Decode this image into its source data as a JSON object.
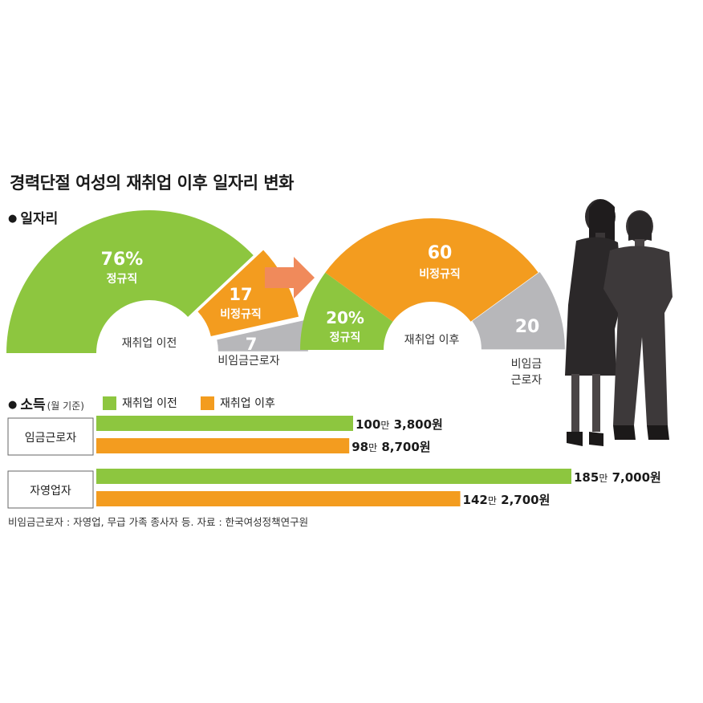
{
  "title": "경력단절 여성의 재취업 이후 일자리 변화",
  "jobs_section": {
    "bullet": "●",
    "label": "일자리"
  },
  "income_section": {
    "bullet": "●",
    "label": "소득",
    "sublabel": "(월 기준)"
  },
  "colors": {
    "before": "#8dc63f",
    "after": "#f39c1f",
    "nonwage": "#b7b7ba",
    "arrow": "#f08a5b"
  },
  "chart_data": [
    {
      "type": "pie",
      "name": "재취업 이전",
      "center_label": "재취업 이전",
      "slices": [
        {
          "key": "regular",
          "value": 76,
          "value_text": "76%",
          "label": "정규직",
          "color": "#8dc63f"
        },
        {
          "key": "nonregular",
          "value": 17,
          "value_text": "17",
          "label": "비정규직",
          "color": "#f39c1f"
        },
        {
          "key": "nonwage",
          "value": 7,
          "value_text": "7",
          "label": "비임금근로자",
          "color": "#b7b7ba"
        }
      ]
    },
    {
      "type": "pie",
      "name": "재취업 이후",
      "center_label": "재취업 이후",
      "slices": [
        {
          "key": "regular",
          "value": 20,
          "value_text": "20%",
          "label": "정규직",
          "color": "#8dc63f"
        },
        {
          "key": "nonregular",
          "value": 60,
          "value_text": "60",
          "label": "비정규직",
          "color": "#f39c1f"
        },
        {
          "key": "nonwage",
          "value": 20,
          "value_text": "20",
          "label": "비임금\n근로자",
          "color": "#b7b7ba"
        }
      ]
    },
    {
      "type": "bar",
      "legend": [
        "재취업 이전",
        "재취업 이후"
      ],
      "categories": [
        "임금근로자",
        "자영업자"
      ],
      "series": [
        {
          "name": "재취업 이전",
          "values": [
            1003800,
            1857000
          ],
          "labels": [
            "100만 3,800원",
            "185만 7,000원"
          ],
          "color": "#8dc63f"
        },
        {
          "name": "재취업 이후",
          "values": [
            988700,
            1422700
          ],
          "labels": [
            "98만 8,700원",
            "142만 2,700원"
          ],
          "color": "#f39c1f"
        }
      ]
    }
  ],
  "note": "비임금근로자 : 자영업, 무급 가족 종사자 등. 자료 : 한국여성정책연구원"
}
